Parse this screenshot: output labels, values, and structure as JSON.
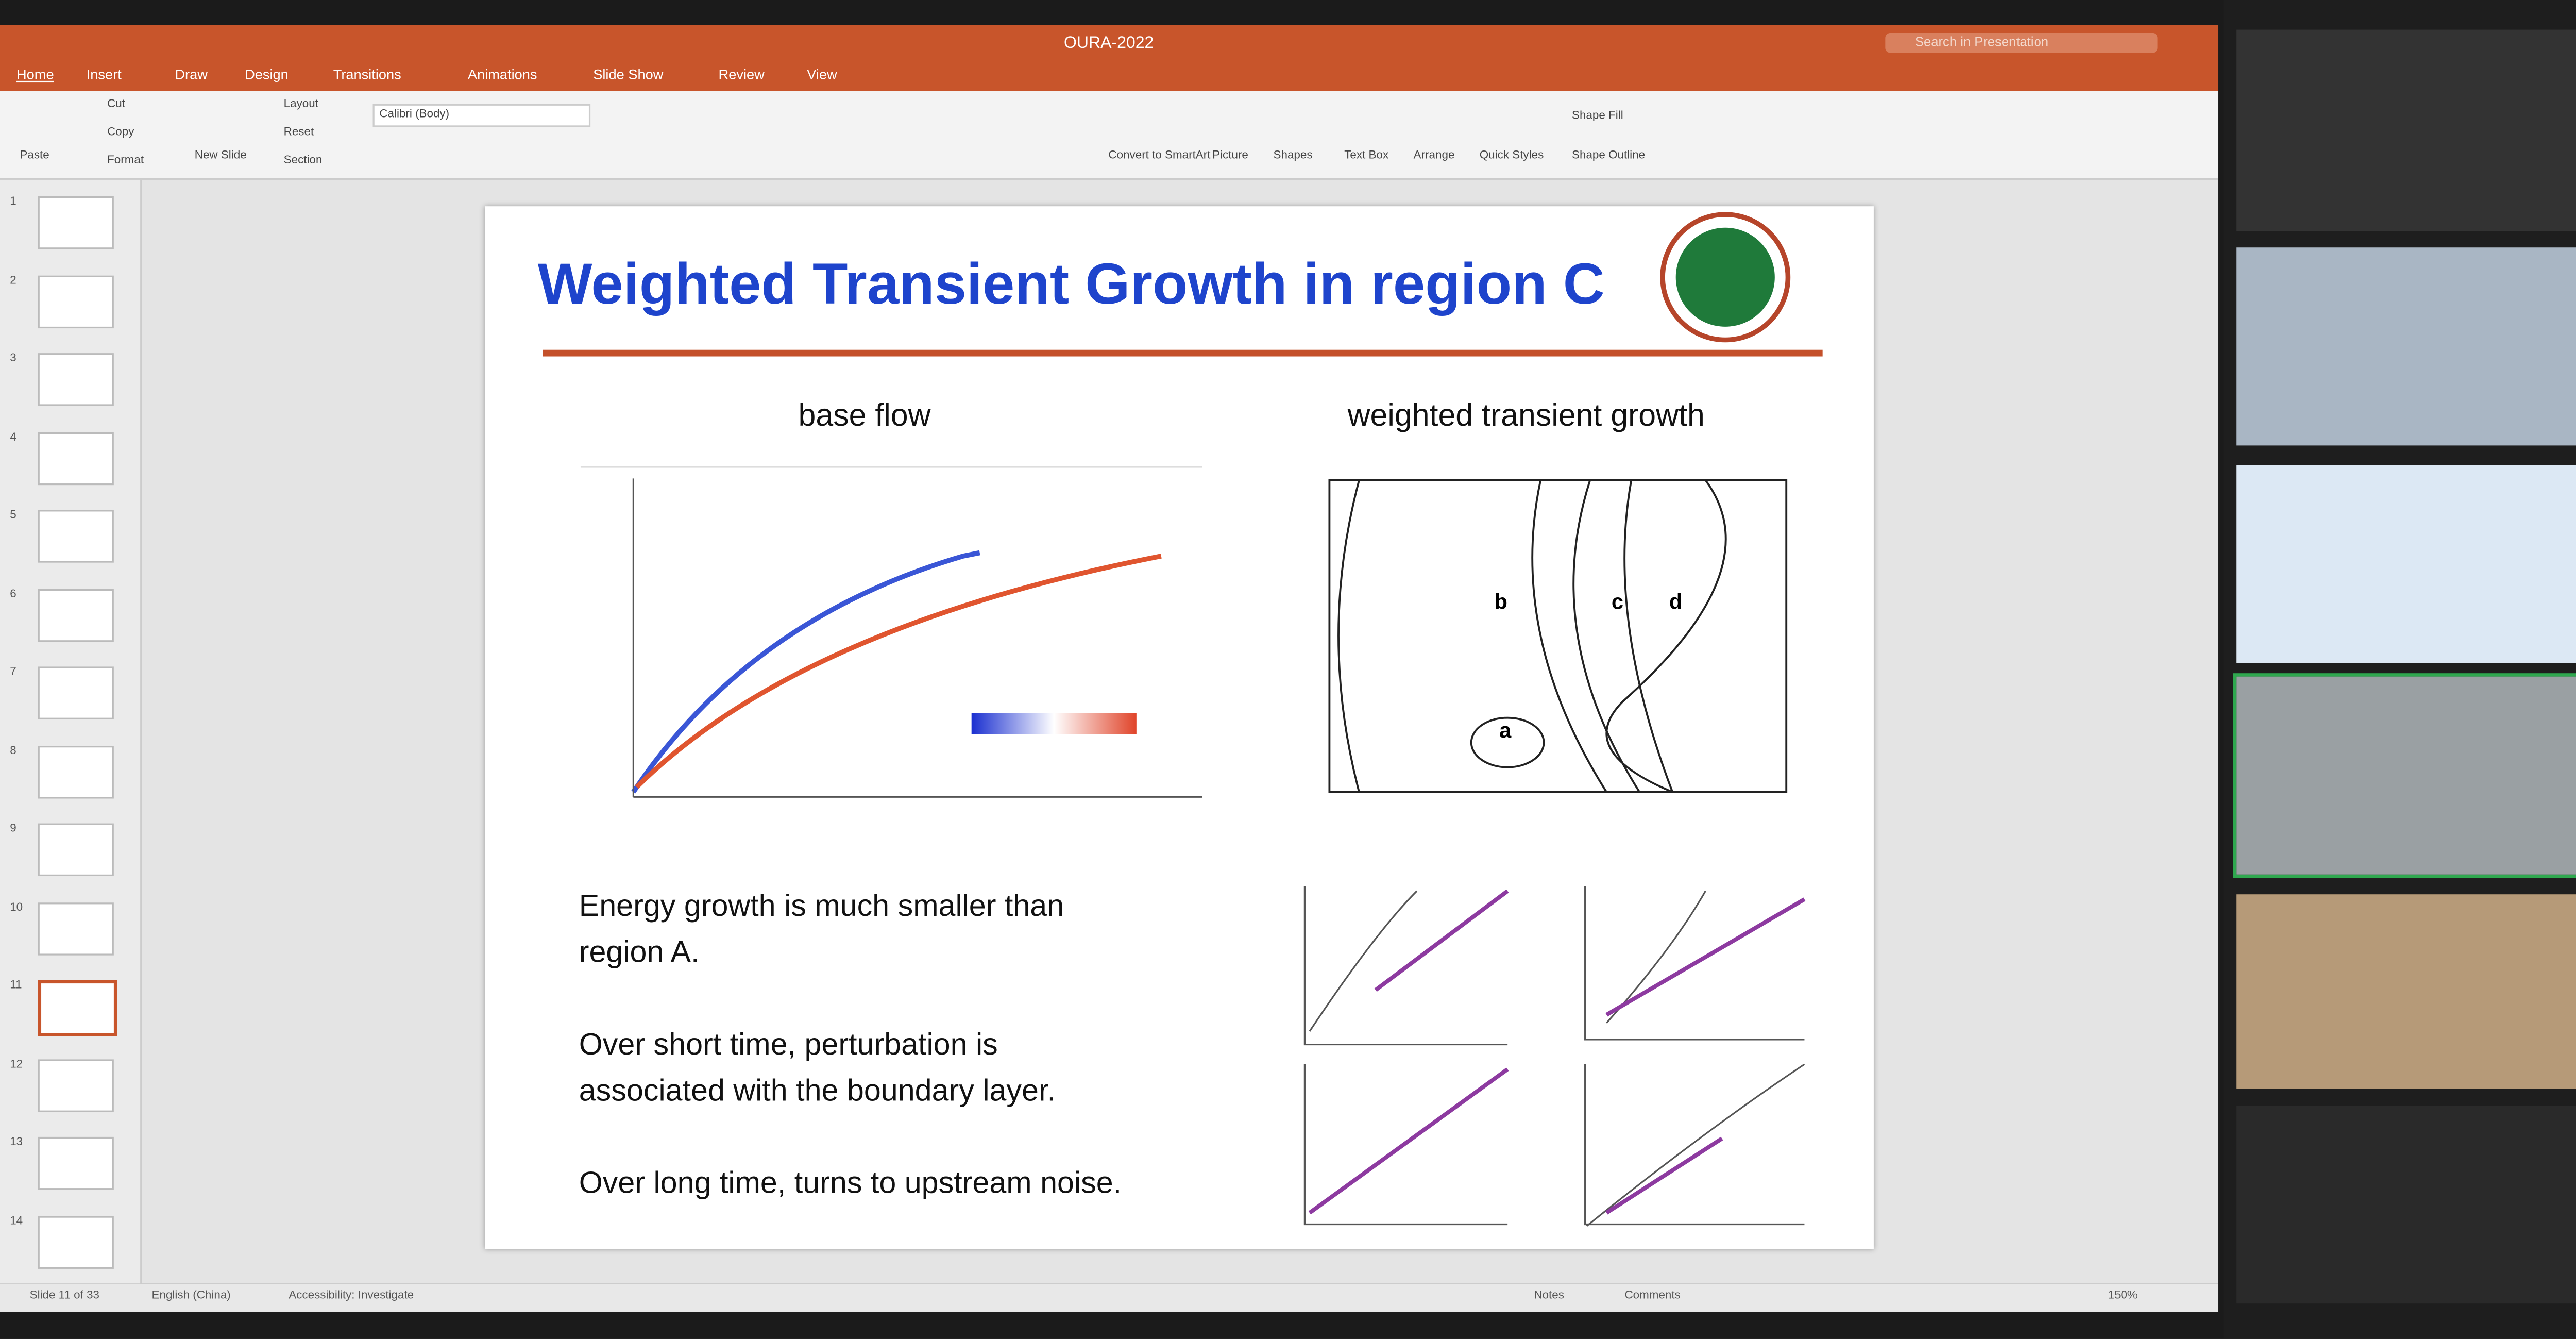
{
  "window": {
    "title": "OURA-2022",
    "search": "Search in Presentation"
  },
  "ribbon": {
    "tabs": [
      "Home",
      "Insert",
      "Draw",
      "Design",
      "Transitions",
      "Animations",
      "Slide Show",
      "Review",
      "View"
    ],
    "buttons": {
      "paste": "Paste",
      "cut": "Cut",
      "copy": "Copy",
      "format": "Format",
      "new_slide": "New Slide",
      "layout": "Layout",
      "reset": "Reset",
      "section": "Section",
      "font": "Calibri (Body)",
      "picture": "Picture",
      "shapes": "Shapes",
      "text_box": "Text Box",
      "arrange": "Arrange",
      "quick_styles": "Quick Styles",
      "shape_fill": "Shape Fill",
      "shape_outline": "Shape Outline",
      "smartart": "Convert to SmartArt"
    }
  },
  "thumbnails": [
    "1",
    "2",
    "3",
    "4",
    "5",
    "6",
    "7",
    "8",
    "9",
    "10",
    "11",
    "12",
    "13",
    "14"
  ],
  "slide": {
    "title": "Weighted Transient Growth in region C",
    "left_caption": "base flow",
    "right_caption": "weighted transient growth",
    "contour_labels": [
      "a",
      "b",
      "c",
      "d"
    ],
    "paragraphs": [
      [
        "Energy growth is much smaller than",
        "region A."
      ],
      [
        "Over short time, perturbation is",
        "associated with the boundary layer."
      ],
      [
        "Over long time, turns to upstream noise."
      ]
    ]
  },
  "status": {
    "slide": "Slide 11 of 33",
    "language": "English (China)",
    "accessibility": "Accessibility: Investigate",
    "notes": "Notes",
    "comments": "Comments",
    "zoom": "150%"
  }
}
